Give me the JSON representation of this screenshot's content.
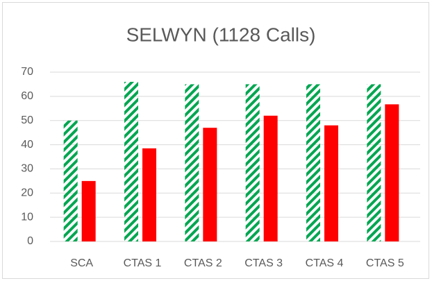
{
  "chart_data": {
    "type": "bar",
    "title": "SELWYN (1128 Calls)",
    "categories": [
      "SCA",
      "CTAS 1",
      "CTAS 2",
      "CTAS 3",
      "CTAS 4",
      "CTAS 5"
    ],
    "series": [
      {
        "color": "#00a651",
        "pattern": "hatch",
        "values": [
          50,
          66,
          65,
          65,
          65,
          65
        ]
      },
      {
        "color": "#ff0000",
        "values": [
          25,
          38.5,
          47,
          52,
          48,
          56.7
        ]
      }
    ],
    "ylim": [
      0,
      70
    ],
    "yticks": [
      0,
      10,
      20,
      30,
      40,
      50,
      60,
      70
    ],
    "grid": true
  }
}
